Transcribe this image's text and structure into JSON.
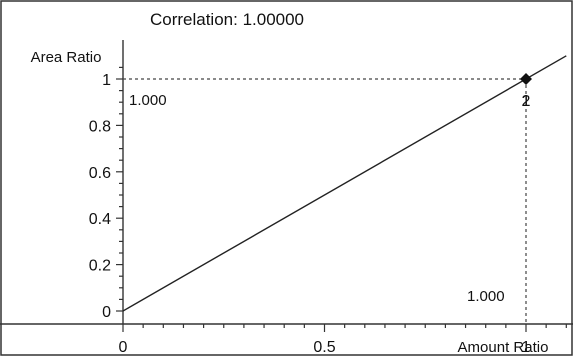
{
  "chart_data": {
    "type": "line",
    "title": "Correlation: 1.00000",
    "xlabel": "Amount Ratio",
    "ylabel": "Area Ratio",
    "xlim": [
      0,
      1.1
    ],
    "ylim": [
      -0.05,
      1.1
    ],
    "x_ticks": [
      0,
      0.5,
      1
    ],
    "x_tick_labels": [
      "0",
      "0.5",
      "1"
    ],
    "y_ticks": [
      0,
      0.2,
      0.4,
      0.6,
      0.8,
      1
    ],
    "y_tick_labels": [
      "0",
      "0.2",
      "0.4",
      "0.6",
      "0.8",
      "1"
    ],
    "grid": false,
    "fit_line": {
      "slope": 1.0,
      "intercept": 0.0
    },
    "points": [
      {
        "x": 1.0,
        "y": 1.0,
        "labels": [
          "2",
          "1"
        ]
      }
    ],
    "annotations": {
      "y_value": "1.000",
      "x_value": "1.000"
    }
  }
}
